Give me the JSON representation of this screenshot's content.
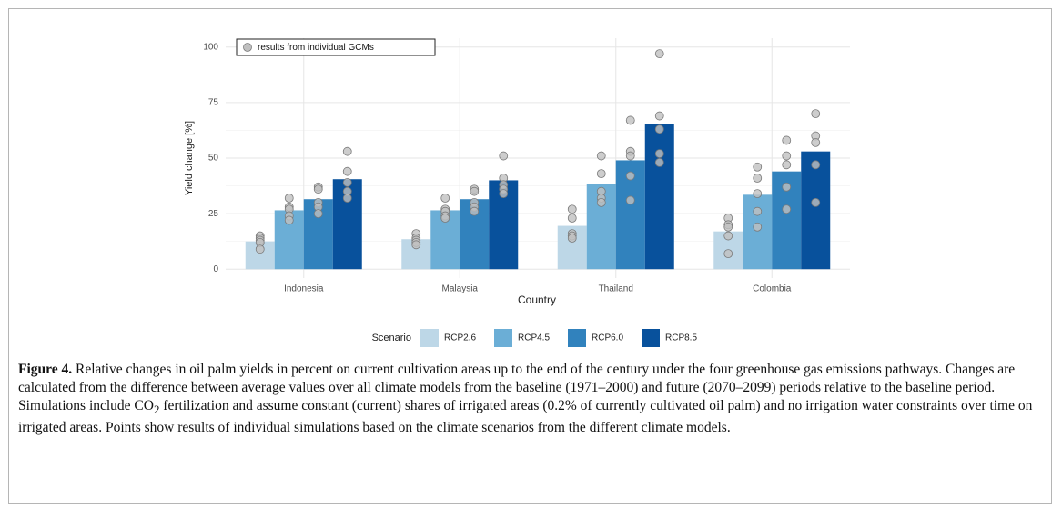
{
  "chart_data": {
    "type": "bar",
    "x_label": "Country",
    "y_label": "Yield change [%]",
    "categories": [
      "Indonesia",
      "Malaysia",
      "Thailand",
      "Colombia"
    ],
    "legend_title": "Scenario",
    "series": [
      {
        "name": "RCP2.6",
        "color": "#bdd7e7",
        "values": [
          12.5,
          13.5,
          19.5,
          17
        ]
      },
      {
        "name": "RCP4.5",
        "color": "#6baed6",
        "values": [
          26.5,
          26.5,
          38.5,
          33.5
        ]
      },
      {
        "name": "RCP6.0",
        "color": "#3182bd",
        "values": [
          31.5,
          31.5,
          49,
          44
        ]
      },
      {
        "name": "RCP8.5",
        "color": "#08519c",
        "values": [
          40.5,
          40,
          65.5,
          53
        ]
      }
    ],
    "points": {
      "name": "results from individual GCMs",
      "color": "#c0c0c0",
      "legend": "top-left",
      "values": [
        [
          [
            15,
            14,
            13,
            12,
            9
          ],
          [
            32,
            28,
            27,
            24,
            22
          ],
          [
            37,
            36,
            30,
            28,
            25
          ],
          [
            53,
            44,
            39,
            35,
            32
          ]
        ],
        [
          [
            16,
            14,
            13,
            12,
            11
          ],
          [
            32,
            27,
            26,
            24,
            23
          ],
          [
            36,
            35,
            30,
            28,
            26
          ],
          [
            51,
            41,
            38,
            36,
            34
          ]
        ],
        [
          [
            27,
            23,
            16,
            15,
            14
          ],
          [
            51,
            43,
            35,
            32,
            30
          ],
          [
            67,
            53,
            51,
            42,
            31
          ],
          [
            97,
            69,
            63,
            52,
            48
          ]
        ],
        [
          [
            23,
            20,
            19,
            15,
            7
          ],
          [
            46,
            41,
            34,
            26,
            19
          ],
          [
            58,
            51,
            47,
            37,
            27
          ],
          [
            70,
            60,
            57,
            47,
            30
          ]
        ]
      ]
    },
    "ylim": [
      -4,
      104
    ],
    "yticks": [
      0,
      25,
      50,
      75,
      100
    ],
    "minor_yticks": [
      12.5,
      37.5,
      62.5,
      87.5
    ],
    "grid": true
  },
  "caption": {
    "label": "Figure 4.",
    "parts": [
      "Relative changes in oil palm yields in percent on current cultivation areas up to the end of the century under the four greenhouse gas emissions pathways. Changes are calculated from the difference between average values over all climate models from the baseline (1971–2000) and future (2070–2099) periods relative to the baseline period. Simulations include CO",
      "2",
      " fertilization and assume constant (current) shares of irrigated areas (0.2% of currently cultivated oil palm) and no irrigation water constraints over time on irrigated areas. Points show results of individual simulations based on the climate scenarios from the different climate models."
    ]
  }
}
